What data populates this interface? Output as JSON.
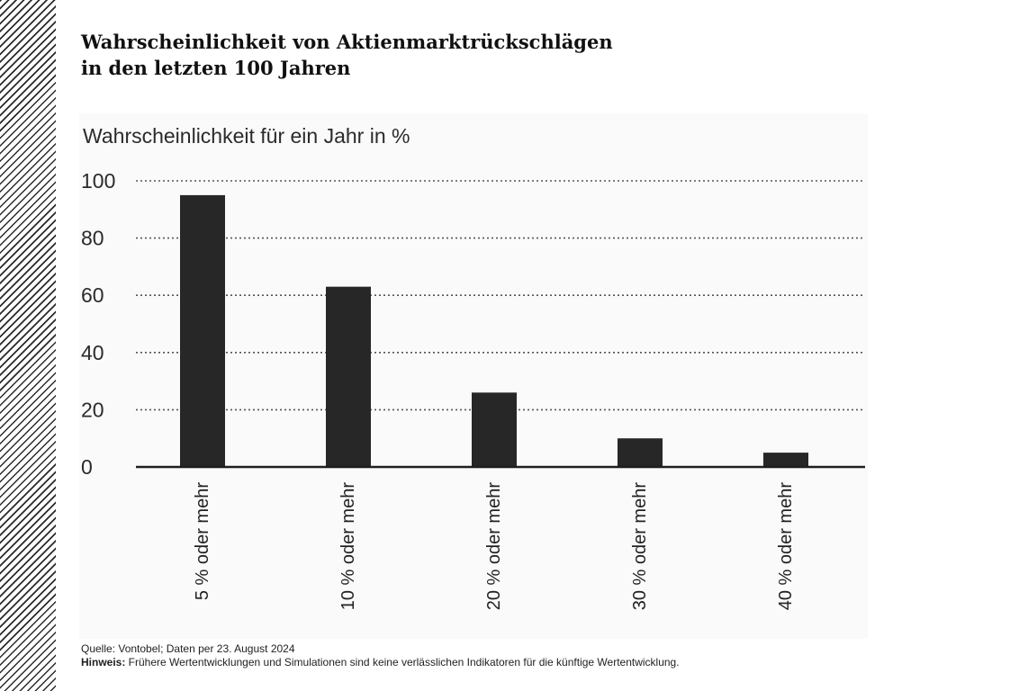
{
  "title": {
    "line1": "Wahrscheinlichkeit von Aktienmarktrückschlägen",
    "line2": "in den letzten 100 Jahren"
  },
  "chart_data": {
    "type": "bar",
    "ylabel": "Wahrscheinlichkeit für ein Jahr in %",
    "categories": [
      "5 % oder mehr",
      "10 % oder mehr",
      "20 % oder mehr",
      "30 % oder mehr",
      "40 % oder mehr"
    ],
    "values": [
      95,
      63,
      26,
      10,
      5
    ],
    "ylim": [
      0,
      100
    ],
    "yticks": [
      0,
      20,
      40,
      60,
      80,
      100
    ],
    "grid": true,
    "bar_color": "#262726"
  },
  "footer": {
    "source": "Quelle: Vontobel; Daten per 23. August 2024",
    "note_label": "Hinweis:",
    "note_text": " Frühere Wertentwicklungen und Simulationen sind keine verlässlichen Indikatoren für die künftige Wertentwicklung."
  }
}
